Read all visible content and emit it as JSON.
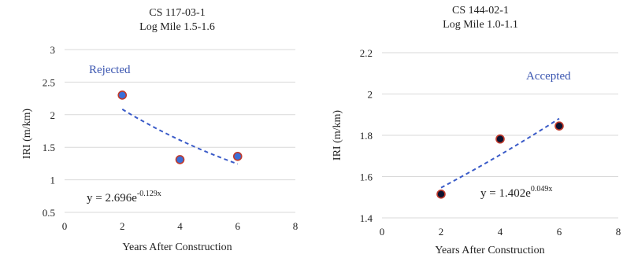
{
  "chart_data": [
    {
      "type": "scatter",
      "title": "CS 117-03-1",
      "subtitle": "Log Mile 1.5-1.6",
      "xlabel": "Years After Construction",
      "ylabel": "IRI (m/km)",
      "xlim": [
        0,
        8
      ],
      "ylim": [
        0.5,
        3
      ],
      "x_ticks": [
        0,
        2,
        4,
        6,
        8
      ],
      "y_ticks": [
        0.5,
        1,
        1.5,
        2,
        2.5,
        3
      ],
      "x_tick_labels": [
        "0",
        "2",
        "4",
        "6",
        "8"
      ],
      "y_tick_labels": [
        "0.5",
        "1",
        "1.5",
        "2",
        "2.5",
        "3"
      ],
      "grid": "horizontal",
      "points": [
        {
          "x": 2,
          "y": 2.3
        },
        {
          "x": 4,
          "y": 1.31
        },
        {
          "x": 6,
          "y": 1.36
        }
      ],
      "trendline": {
        "type": "exponential",
        "a": 2.696,
        "b": -0.129,
        "x_range": [
          2,
          6
        ]
      },
      "equation_base": "y = 2.696e",
      "equation_exp": "-0.129x",
      "status_label": "Rejected",
      "marker_fill": "#3a6fd8",
      "marker_edge": "#c0392b",
      "trend_color": "#3a5bc8",
      "status_color": "#3a55b0"
    },
    {
      "type": "scatter",
      "title": "CS 144-02-1",
      "subtitle": "Log Mile 1.0-1.1",
      "xlabel": "Years After Construction",
      "ylabel": "IRI (m/km)",
      "xlim": [
        0,
        8
      ],
      "ylim": [
        1.4,
        2.2
      ],
      "x_ticks": [
        0,
        2,
        4,
        6,
        8
      ],
      "y_ticks": [
        1.4,
        1.6,
        1.8,
        2,
        2.2
      ],
      "x_tick_labels": [
        "0",
        "2",
        "4",
        "6",
        "8"
      ],
      "y_tick_labels": [
        "1.4",
        "1.6",
        "1.8",
        "2",
        "2.2"
      ],
      "grid": "horizontal",
      "points": [
        {
          "x": 2,
          "y": 1.515
        },
        {
          "x": 4,
          "y": 1.782
        },
        {
          "x": 6,
          "y": 1.845
        }
      ],
      "trendline": {
        "type": "exponential",
        "a": 1.402,
        "b": 0.049,
        "x_range": [
          2,
          6
        ]
      },
      "equation_base": "y = 1.402e",
      "equation_exp": "0.049x",
      "status_label": "Accepted",
      "marker_fill": "#0d1330",
      "marker_edge": "#c0392b",
      "trend_color": "#3a5bc8",
      "status_color": "#3a55b0"
    }
  ]
}
